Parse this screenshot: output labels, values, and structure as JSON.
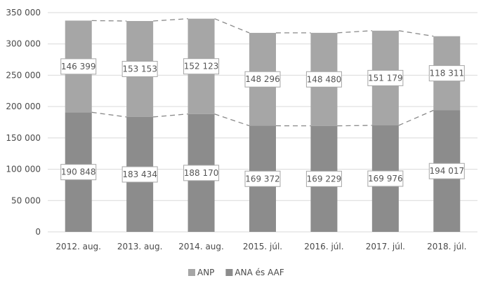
{
  "chart_data": {
    "type": "bar",
    "stacked": true,
    "categories": [
      "2012. aug.",
      "2013. aug.",
      "2014. aug.",
      "2015. júl.",
      "2016. júl.",
      "2017. júl.",
      "2018. júl."
    ],
    "series": [
      {
        "name": "ANA és AAF",
        "values": [
          190848,
          183434,
          188170,
          169372,
          169229,
          169976,
          194017
        ],
        "labels": [
          "190 848",
          "183 434",
          "188 170",
          "169 372",
          "169 229",
          "169 976",
          "194 017"
        ],
        "color": "#8c8c8c"
      },
      {
        "name": "ANP",
        "values": [
          146399,
          153153,
          152123,
          148296,
          148480,
          151179,
          118311
        ],
        "labels": [
          "146 399",
          "153 153",
          "152 123",
          "148 296",
          "148 480",
          "151 179",
          "118 311"
        ],
        "color": "#a6a6a6"
      }
    ],
    "ylim": [
      0,
      350000
    ],
    "yticks": [
      0,
      50000,
      100000,
      150000,
      200000,
      250000,
      300000,
      350000
    ],
    "ytick_labels": [
      "0",
      "50 000",
      "100 000",
      "150 000",
      "200 000",
      "250 000",
      "300 000",
      "350 000"
    ],
    "grid": true,
    "series_lines": "dashed",
    "legend": {
      "position": "bottom",
      "items": [
        "ANP",
        "ANA és AAF"
      ]
    },
    "title": "",
    "xlabel": "",
    "ylabel": ""
  },
  "colors": {
    "grid": "#d9d9d9",
    "dashed_line": "#8a8a8a",
    "label_border": "#a6a6a6",
    "label_bg": "#ffffff",
    "text": "#4a4a4a"
  }
}
